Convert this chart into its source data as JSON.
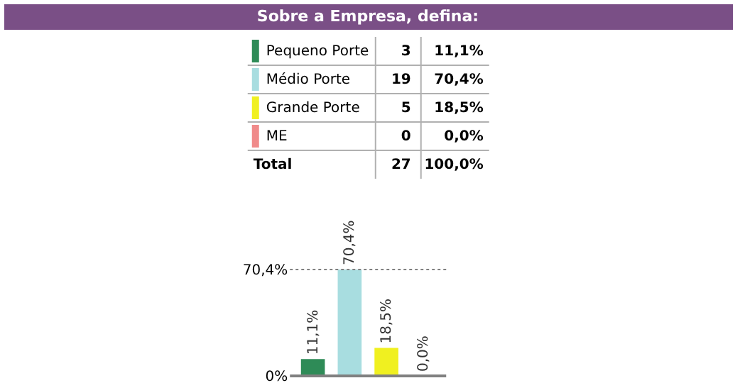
{
  "chart_data": [
    {
      "type": "other",
      "title": "Sobre a Empresa, defina:",
      "categories": [
        "Pequeno Porte",
        "Médio Porte",
        "Grande Porte",
        "ME"
      ],
      "values": [
        11.1,
        70.4,
        18.5,
        0.0
      ],
      "value_labels": [
        "11,1%",
        "70,4%",
        "18,5%",
        "0,0%"
      ],
      "colors": [
        "#2e8b57",
        "#a8dde0",
        "#f0f020",
        "#f08a8a"
      ],
      "annotations": [
        "3",
        "19",
        "5",
        "0",
        "Total",
        "27",
        "100,0%"
      ]
    },
    {
      "type": "bar",
      "categories": [
        null,
        null,
        null,
        null
      ],
      "values": [
        11.1,
        70.4,
        18.5,
        0.0
      ],
      "colors": [
        "#2e8b57",
        "#a8dde0",
        "#f0f020",
        "#f08a8a"
      ],
      "value_labels": [
        "11,1%",
        "70,4%",
        "18,5%",
        "0,0%"
      ],
      "ylim": [
        0,
        70.4
      ],
      "yticks": [
        {
          "value": 0,
          "label": "0%"
        },
        {
          "value": 70.4,
          "label": "70,4%"
        }
      ],
      "ref_lines": [
        {
          "axis": "y",
          "value": 70.4,
          "line_style": "dotted",
          "color": "#808080"
        }
      ]
    }
  ]
}
